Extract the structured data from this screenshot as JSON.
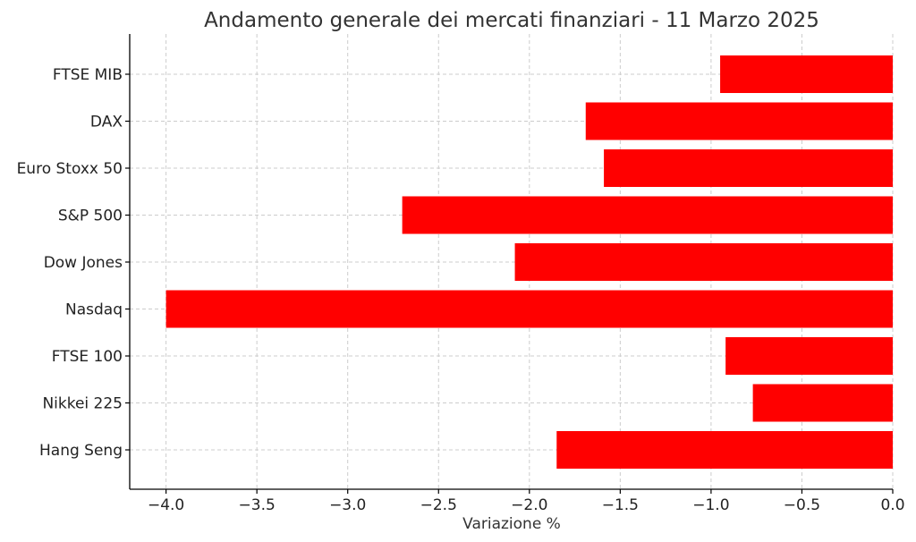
{
  "chart_data": {
    "type": "bar",
    "orientation": "horizontal",
    "title": "Andamento generale dei mercati finanziari - 11 Marzo 2025",
    "xlabel": "Variazione %",
    "ylabel": "",
    "categories": [
      "FTSE MIB",
      "DAX",
      "Euro Stoxx 50",
      "S&P 500",
      "Dow Jones",
      "Nasdaq",
      "FTSE 100",
      "Nikkei 225",
      "Hang Seng"
    ],
    "values": [
      -0.95,
      -1.69,
      -1.59,
      -2.7,
      -2.08,
      -4.0,
      -0.92,
      -0.77,
      -1.85
    ],
    "xlim": [
      -4.2,
      0.0
    ],
    "xticks": [
      -4.0,
      -3.5,
      -3.0,
      -2.5,
      -2.0,
      -1.5,
      -1.0,
      -0.5,
      0.0
    ],
    "xtick_labels": [
      "−4.0",
      "−3.5",
      "−3.0",
      "−2.5",
      "−2.0",
      "−1.5",
      "−1.0",
      "−0.5",
      "0.0"
    ],
    "grid": true,
    "bar_color": "#ff0000"
  }
}
